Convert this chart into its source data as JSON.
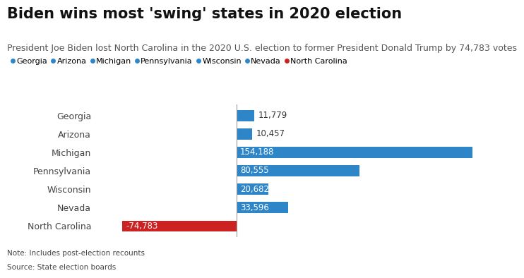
{
  "title": "Biden wins most 'swing' states in 2020 election",
  "subtitle": "President Joe Biden lost North Carolina in the 2020 U.S. election to former President Donald Trump by 74,783 votes",
  "note": "Note: Includes post-election recounts",
  "source": "Source: State election boards",
  "states": [
    "Georgia",
    "Arizona",
    "Michigan",
    "Pennsylvania",
    "Wisconsin",
    "Nevada",
    "North Carolina"
  ],
  "values": [
    11779,
    10457,
    154188,
    80555,
    20682,
    33596,
    -74783
  ],
  "colors": [
    "#2e86c8",
    "#2e86c8",
    "#2e86c8",
    "#2e86c8",
    "#2e86c8",
    "#2e86c8",
    "#cc2222"
  ],
  "legend_colors": [
    "#2e86c8",
    "#2e86c8",
    "#2e86c8",
    "#2e86c8",
    "#2e86c8",
    "#2e86c8",
    "#cc2222"
  ],
  "legend_labels": [
    "Georgia",
    "Arizona",
    "Michigan",
    "Pennsylvania",
    "Wisconsin",
    "Nevada",
    "North Carolina"
  ],
  "background_color": "#ffffff",
  "bar_height": 0.6,
  "xlim": [
    -90000,
    165000
  ],
  "title_fontsize": 15,
  "subtitle_fontsize": 9,
  "label_fontsize": 9,
  "legend_fontsize": 8,
  "value_fontsize": 8.5,
  "small_threshold": 15000
}
